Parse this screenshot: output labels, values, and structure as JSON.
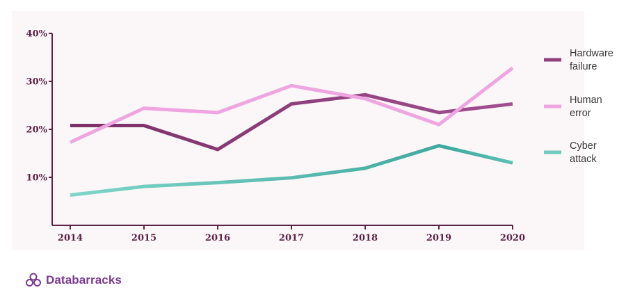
{
  "chart_data": {
    "type": "line",
    "categories": [
      "2014",
      "2015",
      "2016",
      "2017",
      "2018",
      "2019",
      "2020"
    ],
    "y_ticks": [
      "10%",
      "20%",
      "30%",
      "40%"
    ],
    "ylim": [
      0,
      40
    ],
    "grid": false,
    "legend_position": "right",
    "series": [
      {
        "name": "Hardware failure",
        "legend_lines": [
          "Hardware",
          "failure"
        ],
        "color": "#8e3f7c",
        "values": [
          20.8,
          20.8,
          15.8,
          25.3,
          27.2,
          23.5,
          25.3
        ]
      },
      {
        "name": "Human error",
        "legend_lines": [
          "Human",
          "error"
        ],
        "color": "#eea5e0",
        "values": [
          17.3,
          24.4,
          23.5,
          29.1,
          26.4,
          21.0,
          32.8
        ]
      },
      {
        "name": "Cyber attack",
        "legend_lines": [
          "Cyber",
          "attack"
        ],
        "color": "#6ccbbd",
        "values": [
          6.3,
          8.1,
          8.9,
          9.9,
          11.9,
          16.6,
          13.0
        ]
      }
    ]
  },
  "brand": {
    "name": "Databarracks",
    "icon": "flower-logo-icon",
    "color": "#7a3c8e"
  }
}
